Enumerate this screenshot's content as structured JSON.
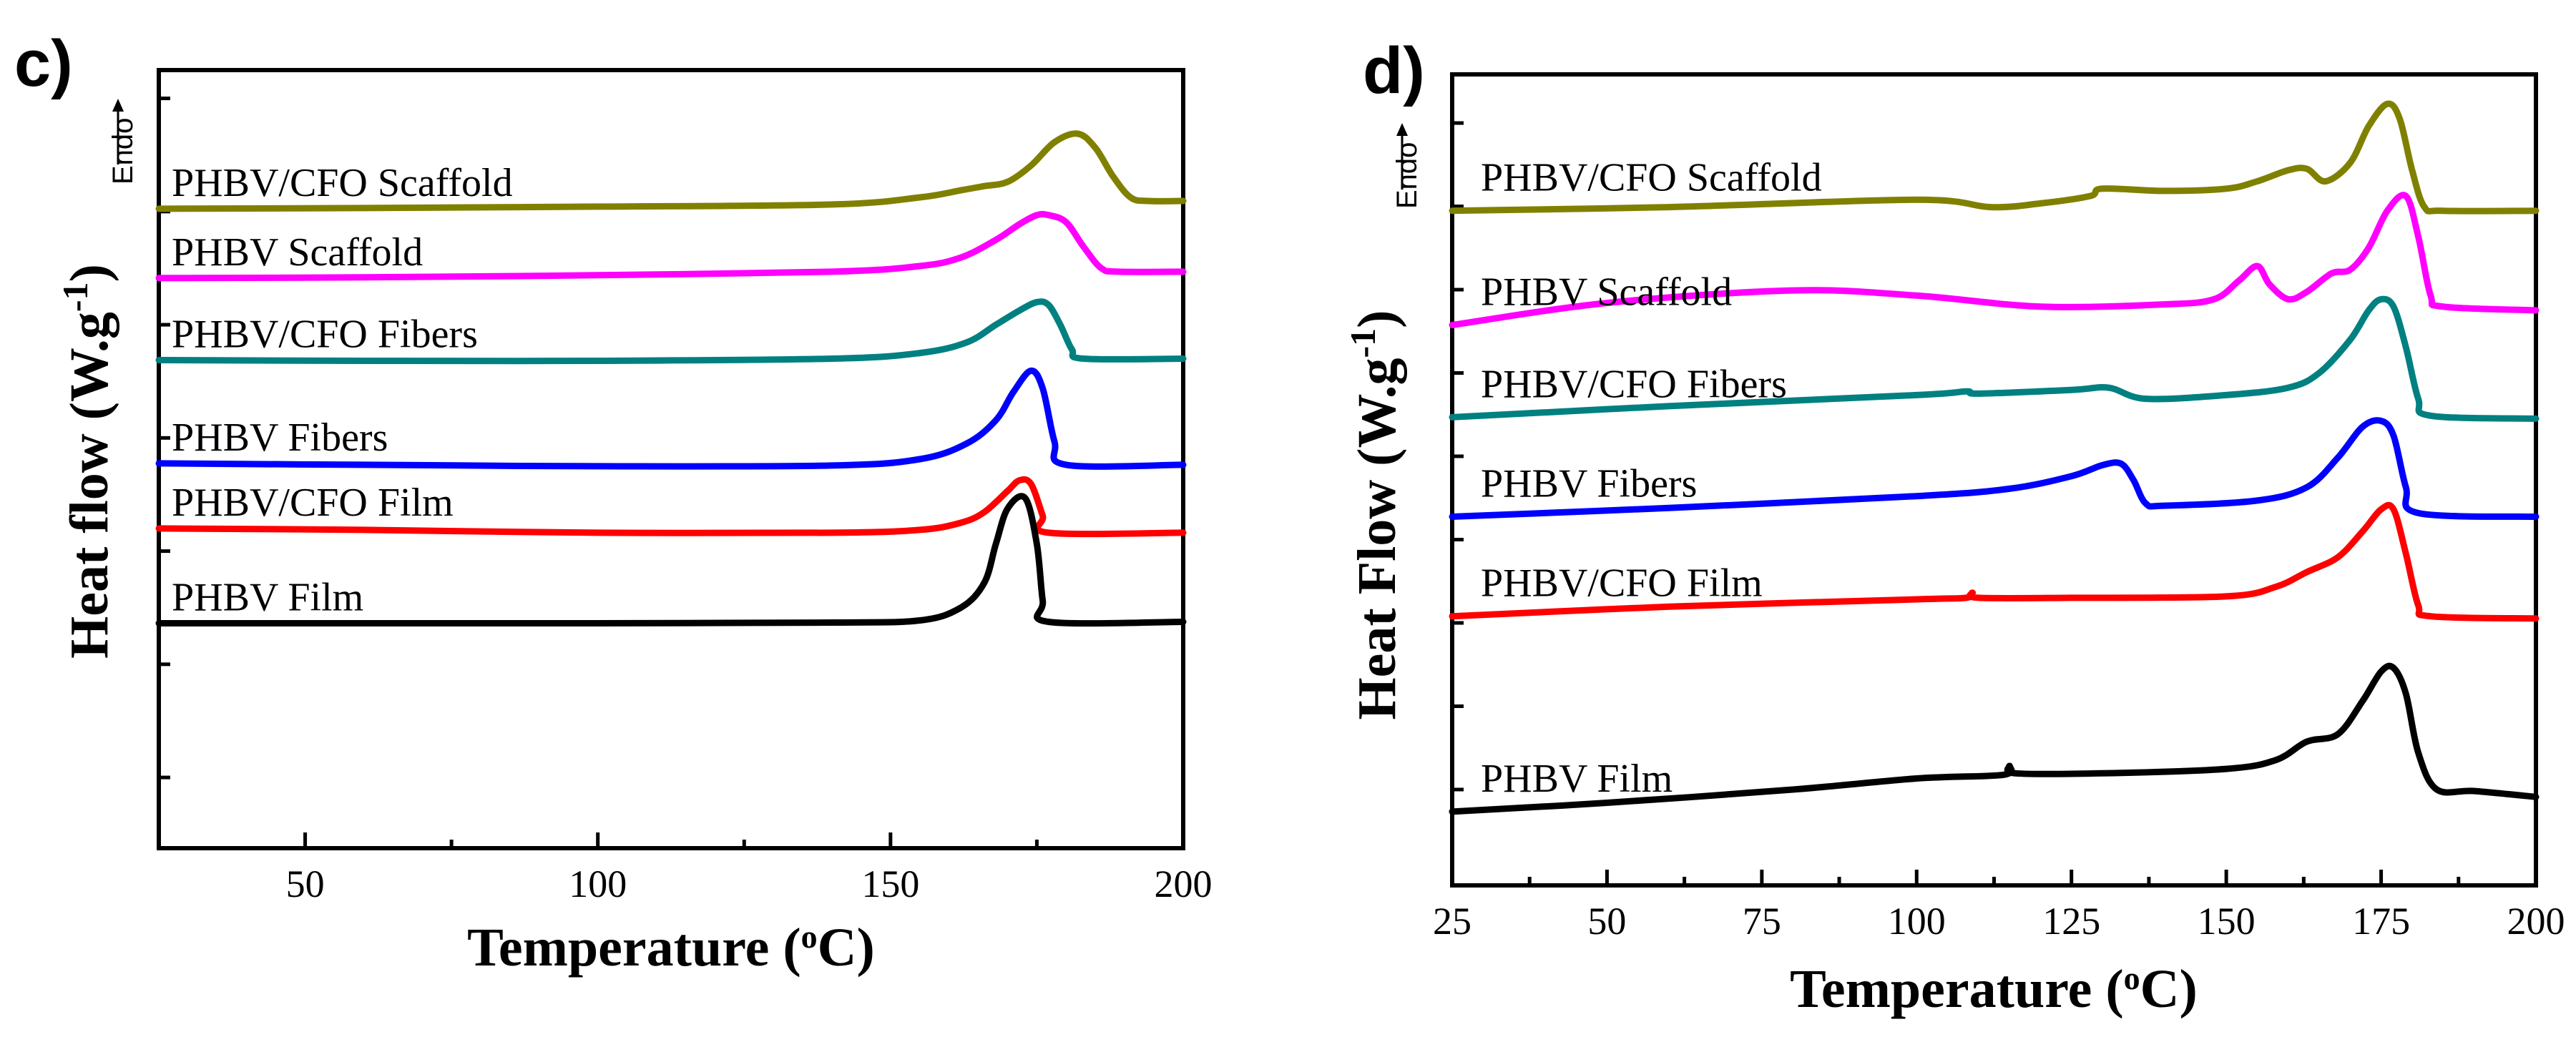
{
  "chart_data": [
    {
      "type": "line",
      "panel": "c)",
      "title": "",
      "xlabel": "Temperature (",
      "xlabel_sup": "o",
      "xlabel_end": "C)",
      "ylabel": "Heat flow (W.g",
      "ylabel_sup": "-1",
      "ylabel_end": ")",
      "endo_label": "Endo",
      "xlim": [
        25,
        200
      ],
      "ylim": [
        -1,
        10
      ],
      "xticks": [
        50,
        100,
        150,
        200
      ],
      "xtick_labels": [
        "50",
        "100",
        "150",
        "200"
      ],
      "yticks": [
        0,
        1.6,
        3.2,
        4.8,
        6.4,
        8.0,
        9.6
      ],
      "series": [
        {
          "name": "PHBV/CFO Scaffold",
          "color": "#808000",
          "x": [
            25,
            60,
            100,
            140,
            155,
            162,
            166,
            170,
            174,
            178,
            182,
            185,
            188,
            191,
            194,
            200
          ],
          "y": [
            8.04,
            8.05,
            8.07,
            8.1,
            8.2,
            8.3,
            8.36,
            8.42,
            8.65,
            8.98,
            9.1,
            8.9,
            8.5,
            8.2,
            8.15,
            8.15
          ]
        },
        {
          "name": "PHBV Scaffold",
          "color": "#FF00FF",
          "x": [
            25,
            60,
            100,
            140,
            155,
            162,
            168,
            172,
            175,
            177,
            180,
            183,
            186,
            189,
            200
          ],
          "y": [
            7.06,
            7.07,
            7.1,
            7.15,
            7.23,
            7.35,
            7.6,
            7.82,
            7.95,
            7.95,
            7.85,
            7.5,
            7.2,
            7.15,
            7.15
          ]
        },
        {
          "name": "PHBV/CFO Fibers",
          "color": "#008080",
          "x": [
            25,
            60,
            100,
            140,
            155,
            163,
            168,
            172,
            175,
            177,
            179,
            181,
            183,
            200
          ],
          "y": [
            5.9,
            5.89,
            5.89,
            5.92,
            6.0,
            6.15,
            6.4,
            6.6,
            6.72,
            6.68,
            6.4,
            6.05,
            5.92,
            5.92
          ]
        },
        {
          "name": "PHBV Fibers",
          "color": "#0000FF",
          "x": [
            25,
            60,
            100,
            140,
            155,
            163,
            168,
            171,
            174,
            176,
            178,
            180,
            200
          ],
          "y": [
            4.44,
            4.42,
            4.4,
            4.41,
            4.5,
            4.72,
            5.05,
            5.45,
            5.75,
            5.5,
            4.75,
            4.42,
            4.42
          ]
        },
        {
          "name": "PHBV/CFO Film",
          "color": "#FF0000",
          "x": [
            25,
            60,
            100,
            140,
            155,
            162,
            166,
            170,
            172,
            174,
            176,
            177,
            200
          ],
          "y": [
            3.52,
            3.5,
            3.46,
            3.46,
            3.5,
            3.6,
            3.75,
            4.05,
            4.2,
            4.15,
            3.7,
            3.46,
            3.46
          ]
        },
        {
          "name": "PHBV Film",
          "color": "#000000",
          "x": [
            25,
            60,
            100,
            140,
            155,
            162,
            166,
            168,
            170,
            173,
            175,
            176,
            177,
            200
          ],
          "y": [
            2.18,
            2.18,
            2.18,
            2.19,
            2.22,
            2.4,
            2.75,
            3.3,
            3.8,
            3.95,
            3.3,
            2.5,
            2.2,
            2.2
          ]
        }
      ]
    },
    {
      "type": "line",
      "panel": "d)",
      "title": "",
      "xlabel": "Temperature (",
      "xlabel_sup": "o",
      "xlabel_end": "C)",
      "ylabel": "Heat Flow (W.g",
      "ylabel_sup": "-1",
      "ylabel_end": ")",
      "endo_label": "Endo",
      "xlim": [
        25,
        200
      ],
      "ylim": [
        -1,
        10
      ],
      "xticks": [
        25,
        50,
        75,
        100,
        125,
        150,
        175,
        200
      ],
      "xtick_labels": [
        "25",
        "50",
        "75",
        "100",
        "125",
        "150",
        "175",
        "200"
      ],
      "yticks": [
        0.3,
        1.43,
        2.56,
        3.69,
        4.82,
        5.95,
        7.08,
        8.21,
        9.34
      ],
      "series": [
        {
          "name": "PHBV/CFO Scaffold",
          "color": "#808000",
          "x": [
            25,
            60,
            100,
            112,
            120,
            128,
            130,
            140,
            150,
            155,
            160,
            163,
            166,
            170,
            173,
            176,
            178,
            180,
            182,
            185,
            200
          ],
          "y": [
            8.15,
            8.2,
            8.3,
            8.2,
            8.25,
            8.35,
            8.45,
            8.42,
            8.45,
            8.55,
            8.7,
            8.72,
            8.55,
            8.8,
            9.3,
            9.6,
            9.4,
            8.7,
            8.2,
            8.15,
            8.15
          ]
        },
        {
          "name": "PHBV Scaffold",
          "color": "#FF00FF",
          "x": [
            25,
            50,
            80,
            100,
            120,
            140,
            148,
            152,
            155,
            157,
            160,
            163,
            167,
            170,
            173,
            176,
            179,
            181,
            183,
            185,
            200
          ],
          "y": [
            6.6,
            6.9,
            7.07,
            7.0,
            6.85,
            6.88,
            6.95,
            7.2,
            7.4,
            7.15,
            6.95,
            7.05,
            7.3,
            7.35,
            7.65,
            8.15,
            8.35,
            7.8,
            7.0,
            6.85,
            6.8
          ]
        },
        {
          "name": "PHBV/CFO Fibers",
          "color": "#008080",
          "x": [
            25,
            60,
            100,
            108,
            110,
            125,
            131,
            137,
            150,
            160,
            165,
            170,
            173,
            175,
            177,
            179,
            181,
            183,
            200
          ],
          "y": [
            5.35,
            5.5,
            5.65,
            5.7,
            5.67,
            5.72,
            5.75,
            5.6,
            5.65,
            5.75,
            5.95,
            6.4,
            6.8,
            6.95,
            6.85,
            6.3,
            5.6,
            5.37,
            5.33
          ]
        },
        {
          "name": "PHBV Fibers",
          "color": "#0000FF",
          "x": [
            25,
            60,
            100,
            115,
            125,
            130,
            133,
            135,
            137,
            140,
            155,
            163,
            168,
            172,
            175,
            177,
            179,
            181,
            200
          ],
          "y": [
            4.0,
            4.12,
            4.28,
            4.38,
            4.55,
            4.7,
            4.72,
            4.5,
            4.18,
            4.15,
            4.22,
            4.4,
            4.8,
            5.22,
            5.3,
            5.1,
            4.4,
            4.05,
            4.0
          ]
        },
        {
          "name": "PHBV/CFO Film",
          "color": "#FF0000",
          "x": [
            25,
            60,
            100,
            108,
            109,
            110,
            125,
            150,
            158,
            163,
            168,
            172,
            175,
            177,
            179,
            181,
            183,
            200
          ],
          "y": [
            2.65,
            2.78,
            2.88,
            2.9,
            2.97,
            2.9,
            2.9,
            2.92,
            3.05,
            3.25,
            3.45,
            3.8,
            4.1,
            4.1,
            3.5,
            2.8,
            2.65,
            2.62
          ]
        },
        {
          "name": "PHBV Film",
          "color": "#000000",
          "x": [
            25,
            50,
            80,
            100,
            114,
            115,
            116,
            130,
            150,
            158,
            163,
            168,
            172,
            175,
            177,
            179,
            181,
            184,
            190,
            200
          ],
          "y": [
            0.0,
            0.12,
            0.3,
            0.45,
            0.5,
            0.62,
            0.52,
            0.52,
            0.58,
            0.7,
            0.95,
            1.05,
            1.5,
            1.9,
            1.95,
            1.6,
            0.8,
            0.3,
            0.28,
            0.2
          ]
        }
      ]
    }
  ]
}
